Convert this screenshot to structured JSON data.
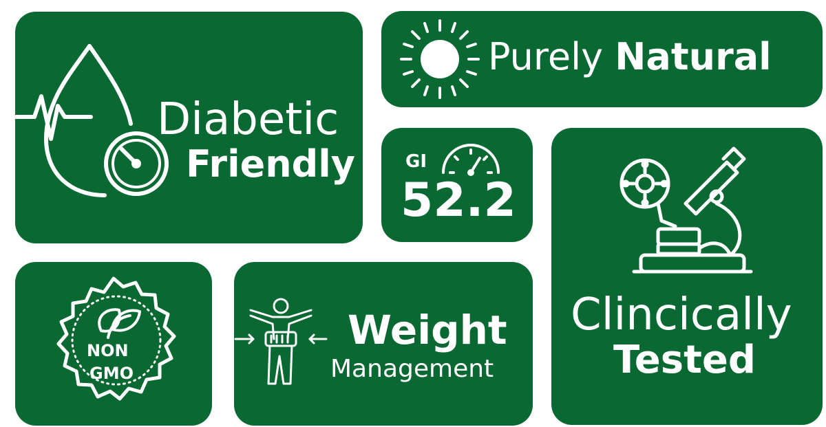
{
  "colors": {
    "card_bg": "#0a6832",
    "foreground": "#ffffff",
    "page_bg": "#ffffff"
  },
  "diabetic": {
    "line1": "Diabetic",
    "line2": "Friendly",
    "icon": "blood-drop-glucose-meter-icon"
  },
  "natural": {
    "light": "Purely",
    "bold": "Natural",
    "icon": "sun-icon"
  },
  "gi": {
    "label": "GI",
    "value": "52.2",
    "icon": "gauge-icon"
  },
  "clinical": {
    "line1": "Clincically",
    "line2": "Tested",
    "icon": "microscope-icon"
  },
  "nongmo": {
    "line1": "NON",
    "line2": "GMO",
    "icon": "leaf-seal-icon"
  },
  "weight": {
    "line1": "Weight",
    "line2": "Management",
    "icon": "body-measure-icon"
  }
}
